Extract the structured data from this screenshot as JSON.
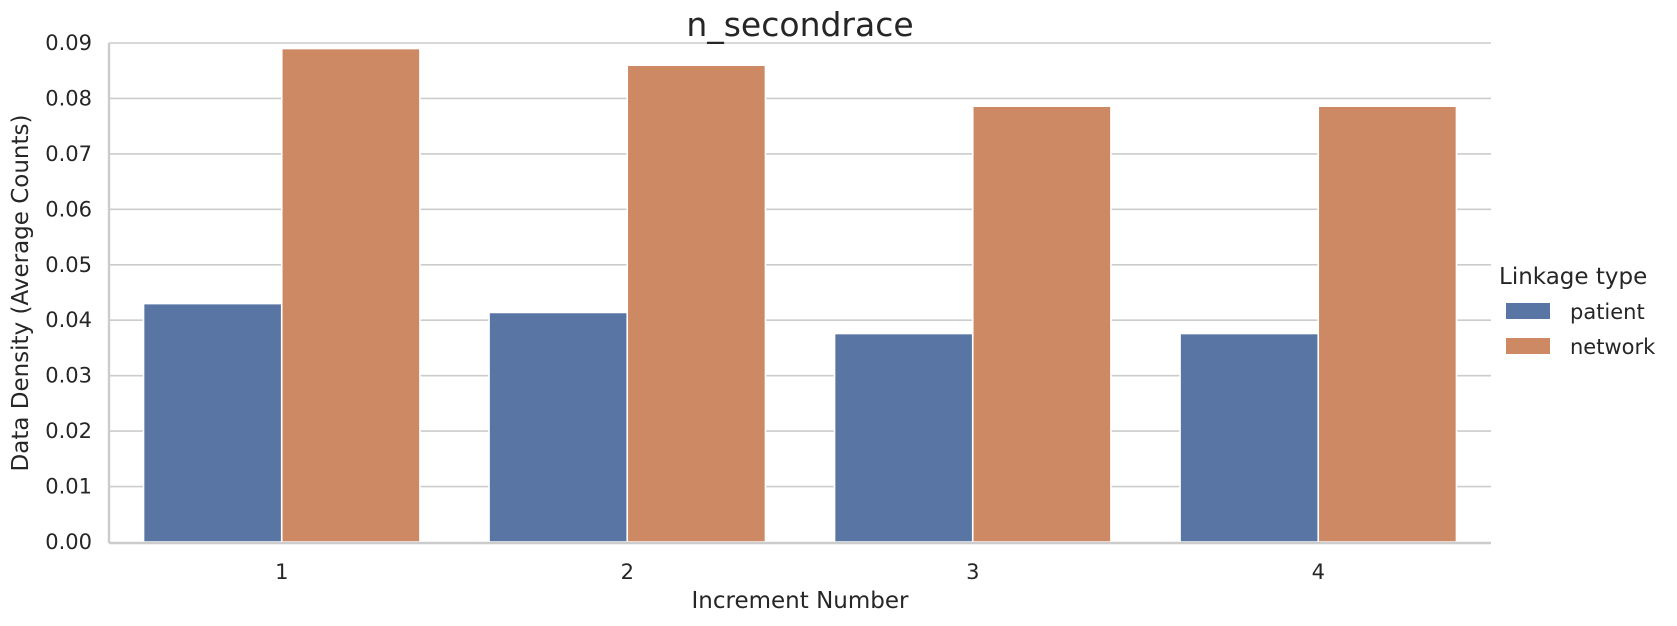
{
  "chart_data": {
    "type": "bar",
    "title": "n_secondrace",
    "xlabel": "Increment Number",
    "ylabel": "Data Density (Average Counts)",
    "categories": [
      "1",
      "2",
      "3",
      "4"
    ],
    "ylim": [
      0,
      0.09
    ],
    "yticks": [
      0.0,
      0.01,
      0.02,
      0.03,
      0.04,
      0.05,
      0.06,
      0.07,
      0.08,
      0.09
    ],
    "ytick_labels": [
      "0.00",
      "0.01",
      "0.02",
      "0.03",
      "0.04",
      "0.05",
      "0.06",
      "0.07",
      "0.08",
      "0.09"
    ],
    "grid": "horizontal",
    "legend": {
      "title": "Linkage type",
      "placement": "right"
    },
    "series": [
      {
        "name": "patient",
        "color": "#5875a4",
        "values": [
          0.043,
          0.0414,
          0.0376,
          0.0376
        ]
      },
      {
        "name": "network",
        "color": "#cc8963",
        "values": [
          0.089,
          0.086,
          0.0786,
          0.0786
        ]
      }
    ]
  }
}
